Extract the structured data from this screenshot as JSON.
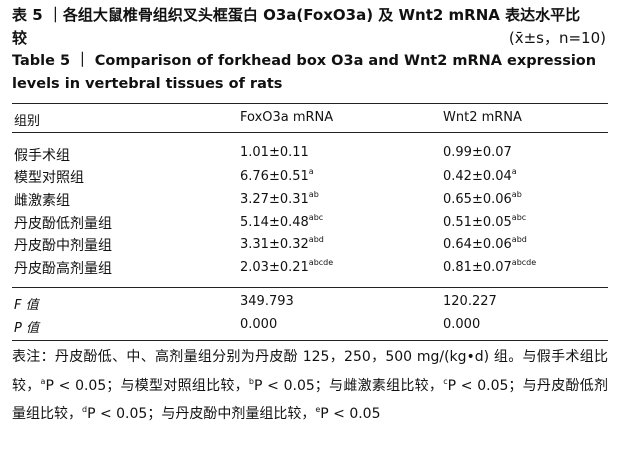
{
  "title_cn": "表 5 ｜各组大鼠椎骨组织叉头框蛋白 O3a(FoxO3a) 及 Wnt2 mRNA 表达水平比较",
  "stat_note": "(x̄±s，n=10)",
  "title_en": "Table 5 ｜ Comparison of forkhead box O3a and Wnt2 mRNA expression levels in vertebral tissues of rats",
  "table": {
    "header": [
      "组别",
      "FoxO3a mRNA",
      "Wnt2 mRNA"
    ],
    "rows": [
      {
        "group": "假手术组",
        "foxo3a": {
          "value": "1.01±0.11"
        },
        "wnt2": {
          "value": "0.99±0.07"
        }
      },
      {
        "group": "模型对照组",
        "foxo3a": {
          "value": "6.76±0.51",
          "sup": "a"
        },
        "wnt2": {
          "value": "0.42±0.04",
          "sup": "a"
        }
      },
      {
        "group": "雌激素组",
        "foxo3a": {
          "value": "3.27±0.31",
          "sup": "ab"
        },
        "wnt2": {
          "value": "0.65±0.06",
          "sup": "ab"
        }
      },
      {
        "group": "丹皮酚低剂量组",
        "foxo3a": {
          "value": "5.14±0.48",
          "sup": "abc"
        },
        "wnt2": {
          "value": "0.51±0.05",
          "sup": "abc"
        }
      },
      {
        "group": "丹皮酚中剂量组",
        "foxo3a": {
          "value": "3.31±0.32",
          "sup": "abd"
        },
        "wnt2": {
          "value": "0.64±0.06",
          "sup": "abd"
        }
      },
      {
        "group": "丹皮酚高剂量组",
        "foxo3a": {
          "value": "2.03±0.21",
          "sup": "abcde"
        },
        "wnt2": {
          "value": "0.81±0.07",
          "sup": "abcde"
        }
      }
    ],
    "stats": [
      {
        "label": "F 值",
        "foxo3a": "349.793",
        "wnt2": "120.227"
      },
      {
        "label": "P 值",
        "foxo3a": "0.000",
        "wnt2": "0.000"
      }
    ]
  },
  "note": [
    {
      "text": "表注：丹皮酚低、中、高剂量组分别为丹皮酚 125，250，500 mg/(kg•d) 组。与假手术组比较，"
    },
    {
      "sup": "a"
    },
    {
      "text": "P < 0.05；与模型对照组比较，"
    },
    {
      "sup": "b"
    },
    {
      "text": "P < 0.05；与雌激素组比较，"
    },
    {
      "sup": "c"
    },
    {
      "text": "P < 0.05；与丹皮酚低剂量组比较，"
    },
    {
      "sup": "d"
    },
    {
      "text": "P < 0.05；与丹皮酚中剂量组比较，"
    },
    {
      "sup": "e"
    },
    {
      "text": "P < 0.05"
    }
  ]
}
